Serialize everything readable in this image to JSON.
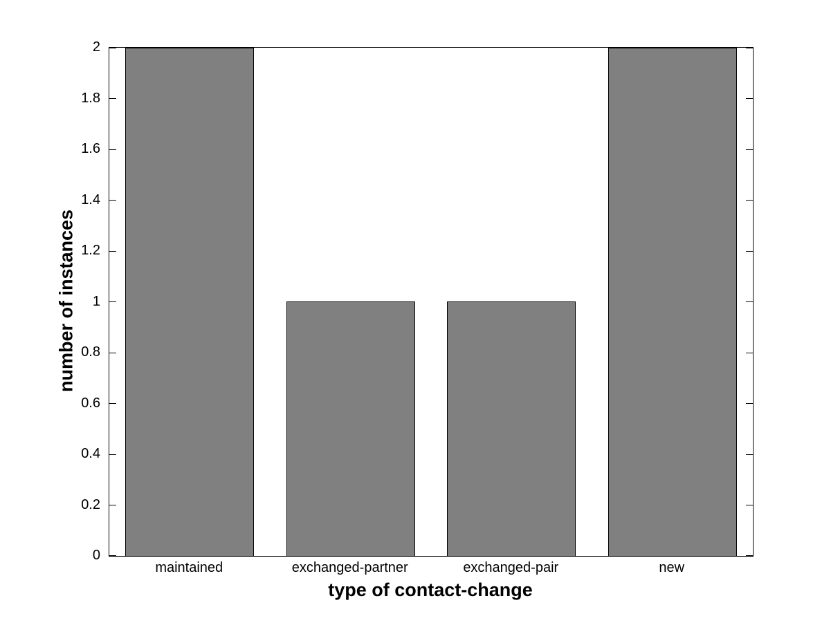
{
  "chart_data": {
    "type": "bar",
    "categories": [
      "maintained",
      "exchanged-partner",
      "exchanged-pair",
      "new"
    ],
    "values": [
      2,
      1,
      1,
      2
    ],
    "title": "",
    "xlabel": "type of contact-change",
    "ylabel": "number of instances",
    "ylim": [
      0,
      2
    ],
    "ytick_values": [
      0,
      0.2,
      0.4,
      0.6,
      0.8,
      1,
      1.2,
      1.4,
      1.6,
      1.8,
      2
    ],
    "ytick_labels": [
      "0",
      "0.2",
      "0.4",
      "0.6",
      "0.8",
      "1",
      "1.2",
      "1.4",
      "1.6",
      "1.8",
      "2"
    ],
    "bar_color": "#808080",
    "bar_edge_color": "#000000",
    "axis_color": "#000000",
    "background_color": "#ffffff",
    "bar_width_fraction": 0.8,
    "grid": "off",
    "legend": "none",
    "box": "on",
    "tick_direction": "in"
  }
}
